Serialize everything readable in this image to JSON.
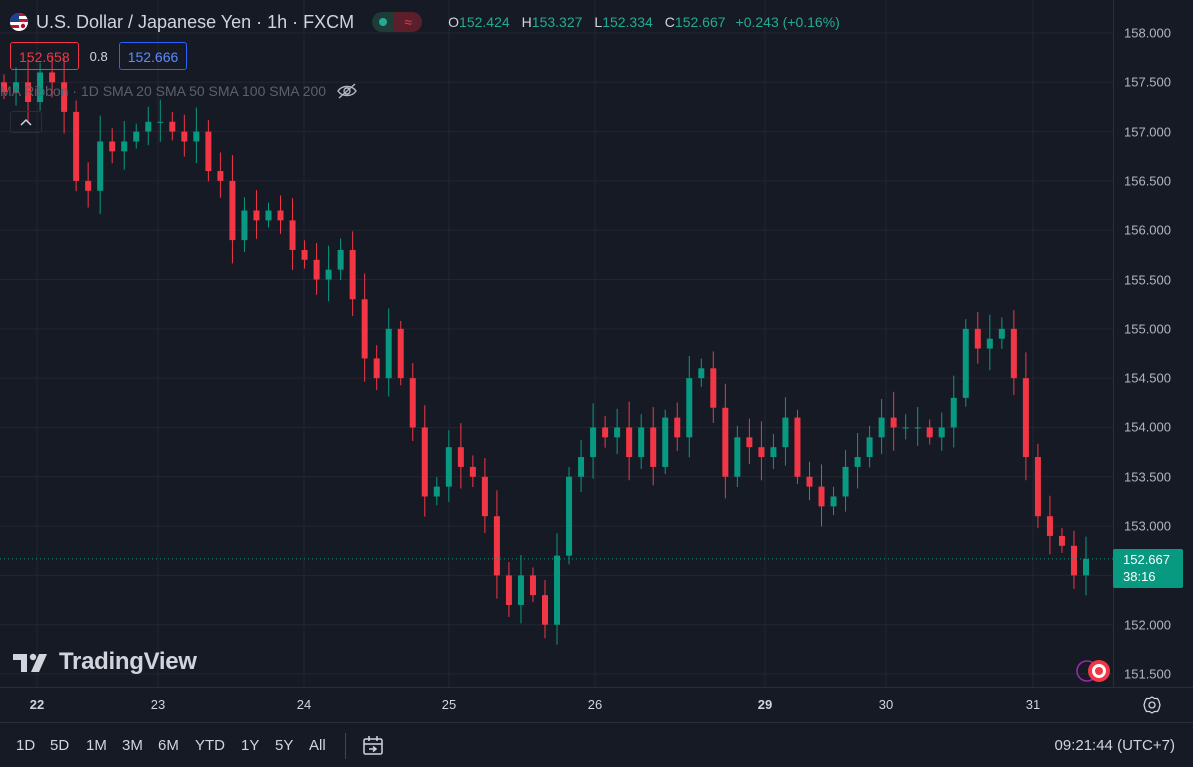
{
  "header": {
    "symbol_title": "U.S. Dollar / Japanese Yen · 1h · FXCM",
    "ohlc": {
      "o_label": "O",
      "o_value": "152.424",
      "h_label": "H",
      "h_value": "153.327",
      "l_label": "L",
      "l_value": "152.334",
      "c_label": "C",
      "c_value": "152.667"
    },
    "change": "+0.243 (+0.16%)",
    "bid": "152.658",
    "spread": "0.8",
    "ask": "152.666",
    "indicator_label": "MA Ribbon · 1D SMA 20 SMA 50 SMA 100 SMA 200"
  },
  "price_axis": {
    "ticks": [
      "158.000",
      "157.500",
      "157.000",
      "156.500",
      "156.000",
      "155.500",
      "155.000",
      "154.500",
      "154.000",
      "153.500",
      "153.000",
      "152.500",
      "152.000",
      "151.500"
    ],
    "current_price": "152.667",
    "countdown": "38:16"
  },
  "time_axis": {
    "ticks": [
      {
        "label": "22",
        "bold": true
      },
      {
        "label": "23",
        "bold": false
      },
      {
        "label": "24",
        "bold": false
      },
      {
        "label": "25",
        "bold": false
      },
      {
        "label": "26",
        "bold": false
      },
      {
        "label": "29",
        "bold": true
      },
      {
        "label": "30",
        "bold": false
      },
      {
        "label": "31",
        "bold": false
      }
    ]
  },
  "bottom_bar": {
    "ranges": [
      "1D",
      "5D",
      "1M",
      "3M",
      "6M",
      "YTD",
      "1Y",
      "5Y",
      "All"
    ],
    "clock": "09:21:44 (UTC+7)"
  },
  "branding": {
    "logo_text": "TradingView"
  },
  "colors": {
    "up": "#089981",
    "down": "#f23645",
    "background": "#161a25",
    "grid": "#232632"
  },
  "icons": [
    "us-japan-flag-icon",
    "eye-off-icon",
    "chevron-up-icon",
    "settings-icon",
    "compare-icon",
    "replay-icon",
    "tradingview-logo-icon"
  ],
  "chart_data": {
    "type": "candlestick",
    "ylim": [
      151.4,
      158.2
    ],
    "last_price": 152.667,
    "closes": [
      157.4,
      157.5,
      157.3,
      157.6,
      157.5,
      157.2,
      156.5,
      156.4,
      156.9,
      156.8,
      156.9,
      157.0,
      157.1,
      157.1,
      157.0,
      156.9,
      157.0,
      156.6,
      156.5,
      155.9,
      156.2,
      156.1,
      156.2,
      156.1,
      155.8,
      155.7,
      155.5,
      155.6,
      155.8,
      155.3,
      154.7,
      154.5,
      155.0,
      154.5,
      154.0,
      153.3,
      153.4,
      153.8,
      153.6,
      153.5,
      153.1,
      152.5,
      152.2,
      152.5,
      152.3,
      152.0,
      152.7,
      153.5,
      153.7,
      154.0,
      153.9,
      154.0,
      153.7,
      154.0,
      153.6,
      154.1,
      153.9,
      154.5,
      154.6,
      154.2,
      153.5,
      153.9,
      153.8,
      153.7,
      153.8,
      154.1,
      153.5,
      153.4,
      153.2,
      153.3,
      153.6,
      153.7,
      153.9,
      154.1,
      154.0,
      154.0,
      154.0,
      153.9,
      154.0,
      154.3,
      155.0,
      154.8,
      154.9,
      155.0,
      154.5,
      153.7,
      153.1,
      152.9,
      152.8,
      152.5,
      152.667
    ]
  }
}
